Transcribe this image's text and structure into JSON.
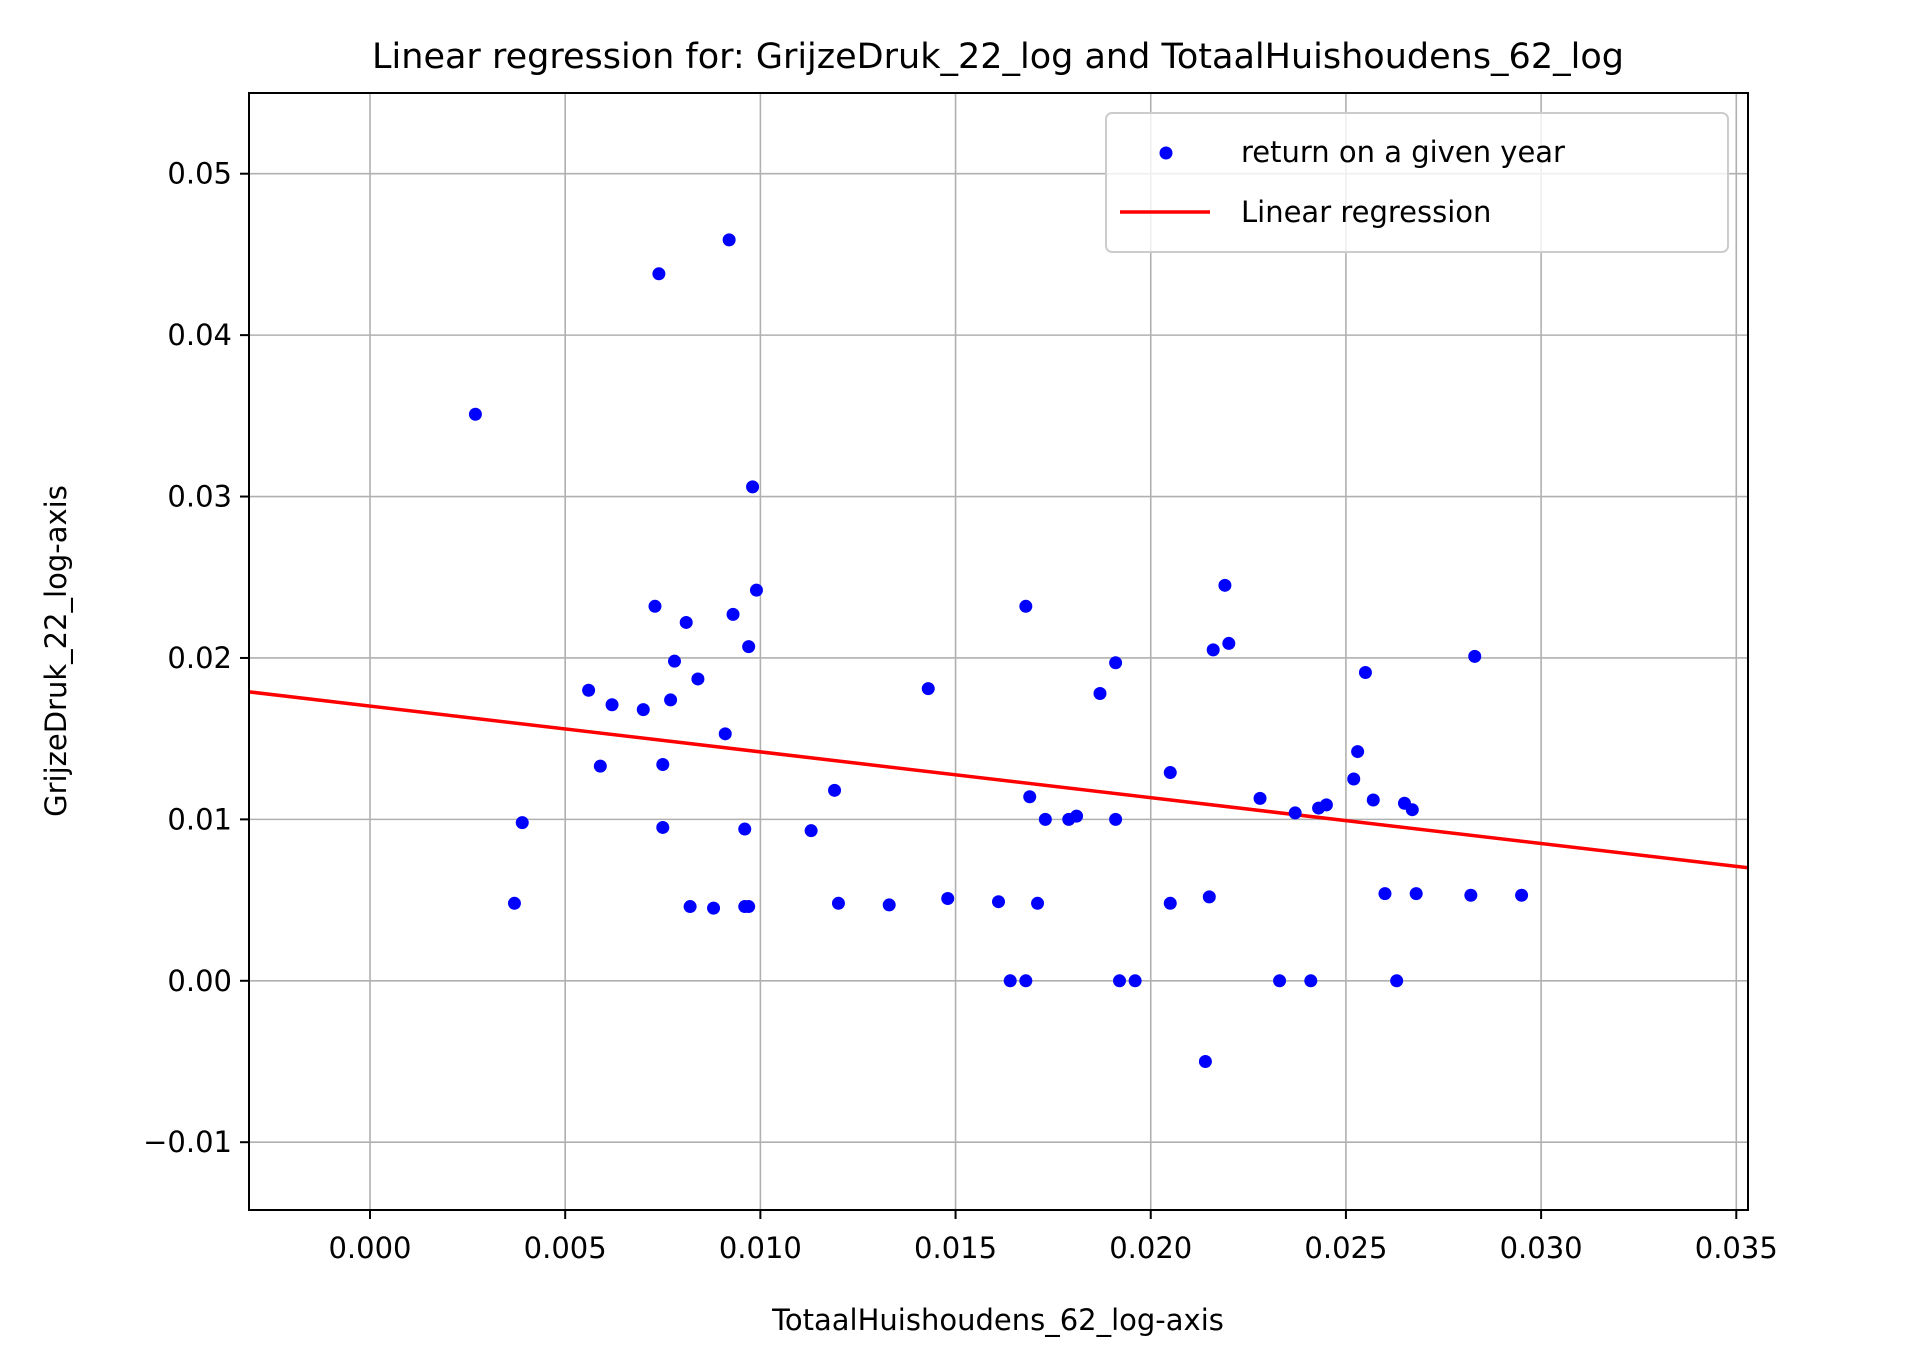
{
  "chart_data": {
    "type": "scatter",
    "title": "Linear regression for: GrijzeDruk_22_log and TotaalHuishoudens_62_log",
    "xlabel": "TotaalHuishoudens_62_log-axis",
    "ylabel": "GrijzeDruk_22_log-axis",
    "xlim": [
      -0.0031,
      0.0353
    ],
    "ylim": [
      -0.0142,
      0.055
    ],
    "xticks": [
      0.0,
      0.005,
      0.01,
      0.015,
      0.02,
      0.025,
      0.03,
      0.035
    ],
    "xtick_labels": [
      "0.000",
      "0.005",
      "0.010",
      "0.015",
      "0.020",
      "0.025",
      "0.030",
      "0.035"
    ],
    "yticks": [
      -0.01,
      0.0,
      0.01,
      0.02,
      0.03,
      0.04,
      0.05
    ],
    "ytick_labels": [
      "−0.01",
      "0.00",
      "0.01",
      "0.02",
      "0.03",
      "0.04",
      "0.05"
    ],
    "grid": true,
    "legend": "top-right",
    "series": [
      {
        "name": "return on a given year",
        "kind": "scatter",
        "color": "#0000ff",
        "x": [
          0.0027,
          0.0037,
          0.0039,
          0.0056,
          0.0059,
          0.0062,
          0.007,
          0.0073,
          0.0074,
          0.0075,
          0.0075,
          0.0077,
          0.0078,
          0.0081,
          0.0082,
          0.0084,
          0.0088,
          0.0091,
          0.0092,
          0.0093,
          0.0096,
          0.0096,
          0.0097,
          0.0097,
          0.0098,
          0.0099,
          0.0113,
          0.0119,
          0.012,
          0.0133,
          0.0143,
          0.0148,
          0.0161,
          0.0164,
          0.0168,
          0.0168,
          0.0169,
          0.0171,
          0.0173,
          0.0179,
          0.0181,
          0.0187,
          0.0191,
          0.0191,
          0.0192,
          0.0196,
          0.0205,
          0.0205,
          0.0214,
          0.0215,
          0.0216,
          0.0219,
          0.022,
          0.0228,
          0.0233,
          0.0237,
          0.0241,
          0.0243,
          0.0245,
          0.0252,
          0.0253,
          0.0255,
          0.0257,
          0.026,
          0.0263,
          0.0265,
          0.0267,
          0.0268,
          0.0282,
          0.0283,
          0.0295
        ],
        "y": [
          0.0351,
          0.0048,
          0.0098,
          0.018,
          0.0133,
          0.0171,
          0.0168,
          0.0232,
          0.0438,
          0.0134,
          0.0095,
          0.0174,
          0.0198,
          0.0222,
          0.0046,
          0.0187,
          0.0045,
          0.0153,
          0.0459,
          0.0227,
          0.0094,
          0.0046,
          0.0046,
          0.0207,
          0.0306,
          0.0242,
          0.0093,
          0.0118,
          0.0048,
          0.0047,
          0.0181,
          0.0051,
          0.0049,
          0.0,
          0.0,
          0.0232,
          0.0114,
          0.0048,
          0.01,
          0.01,
          0.0102,
          0.0178,
          0.01,
          0.0197,
          0.0,
          0.0,
          0.0129,
          0.0048,
          -0.005,
          0.0052,
          0.0205,
          0.0245,
          0.0209,
          0.0113,
          0.0,
          0.0104,
          0.0,
          0.0107,
          0.0109,
          0.0125,
          0.0142,
          0.0191,
          0.0112,
          0.0054,
          0.0,
          0.011,
          0.0106,
          0.0054,
          0.0053,
          0.0201,
          0.0053
        ]
      },
      {
        "name": "Linear regression",
        "kind": "line",
        "color": "#ff0000",
        "x": [
          -0.0031,
          0.0353
        ],
        "y": [
          0.0179,
          0.007
        ]
      }
    ]
  }
}
